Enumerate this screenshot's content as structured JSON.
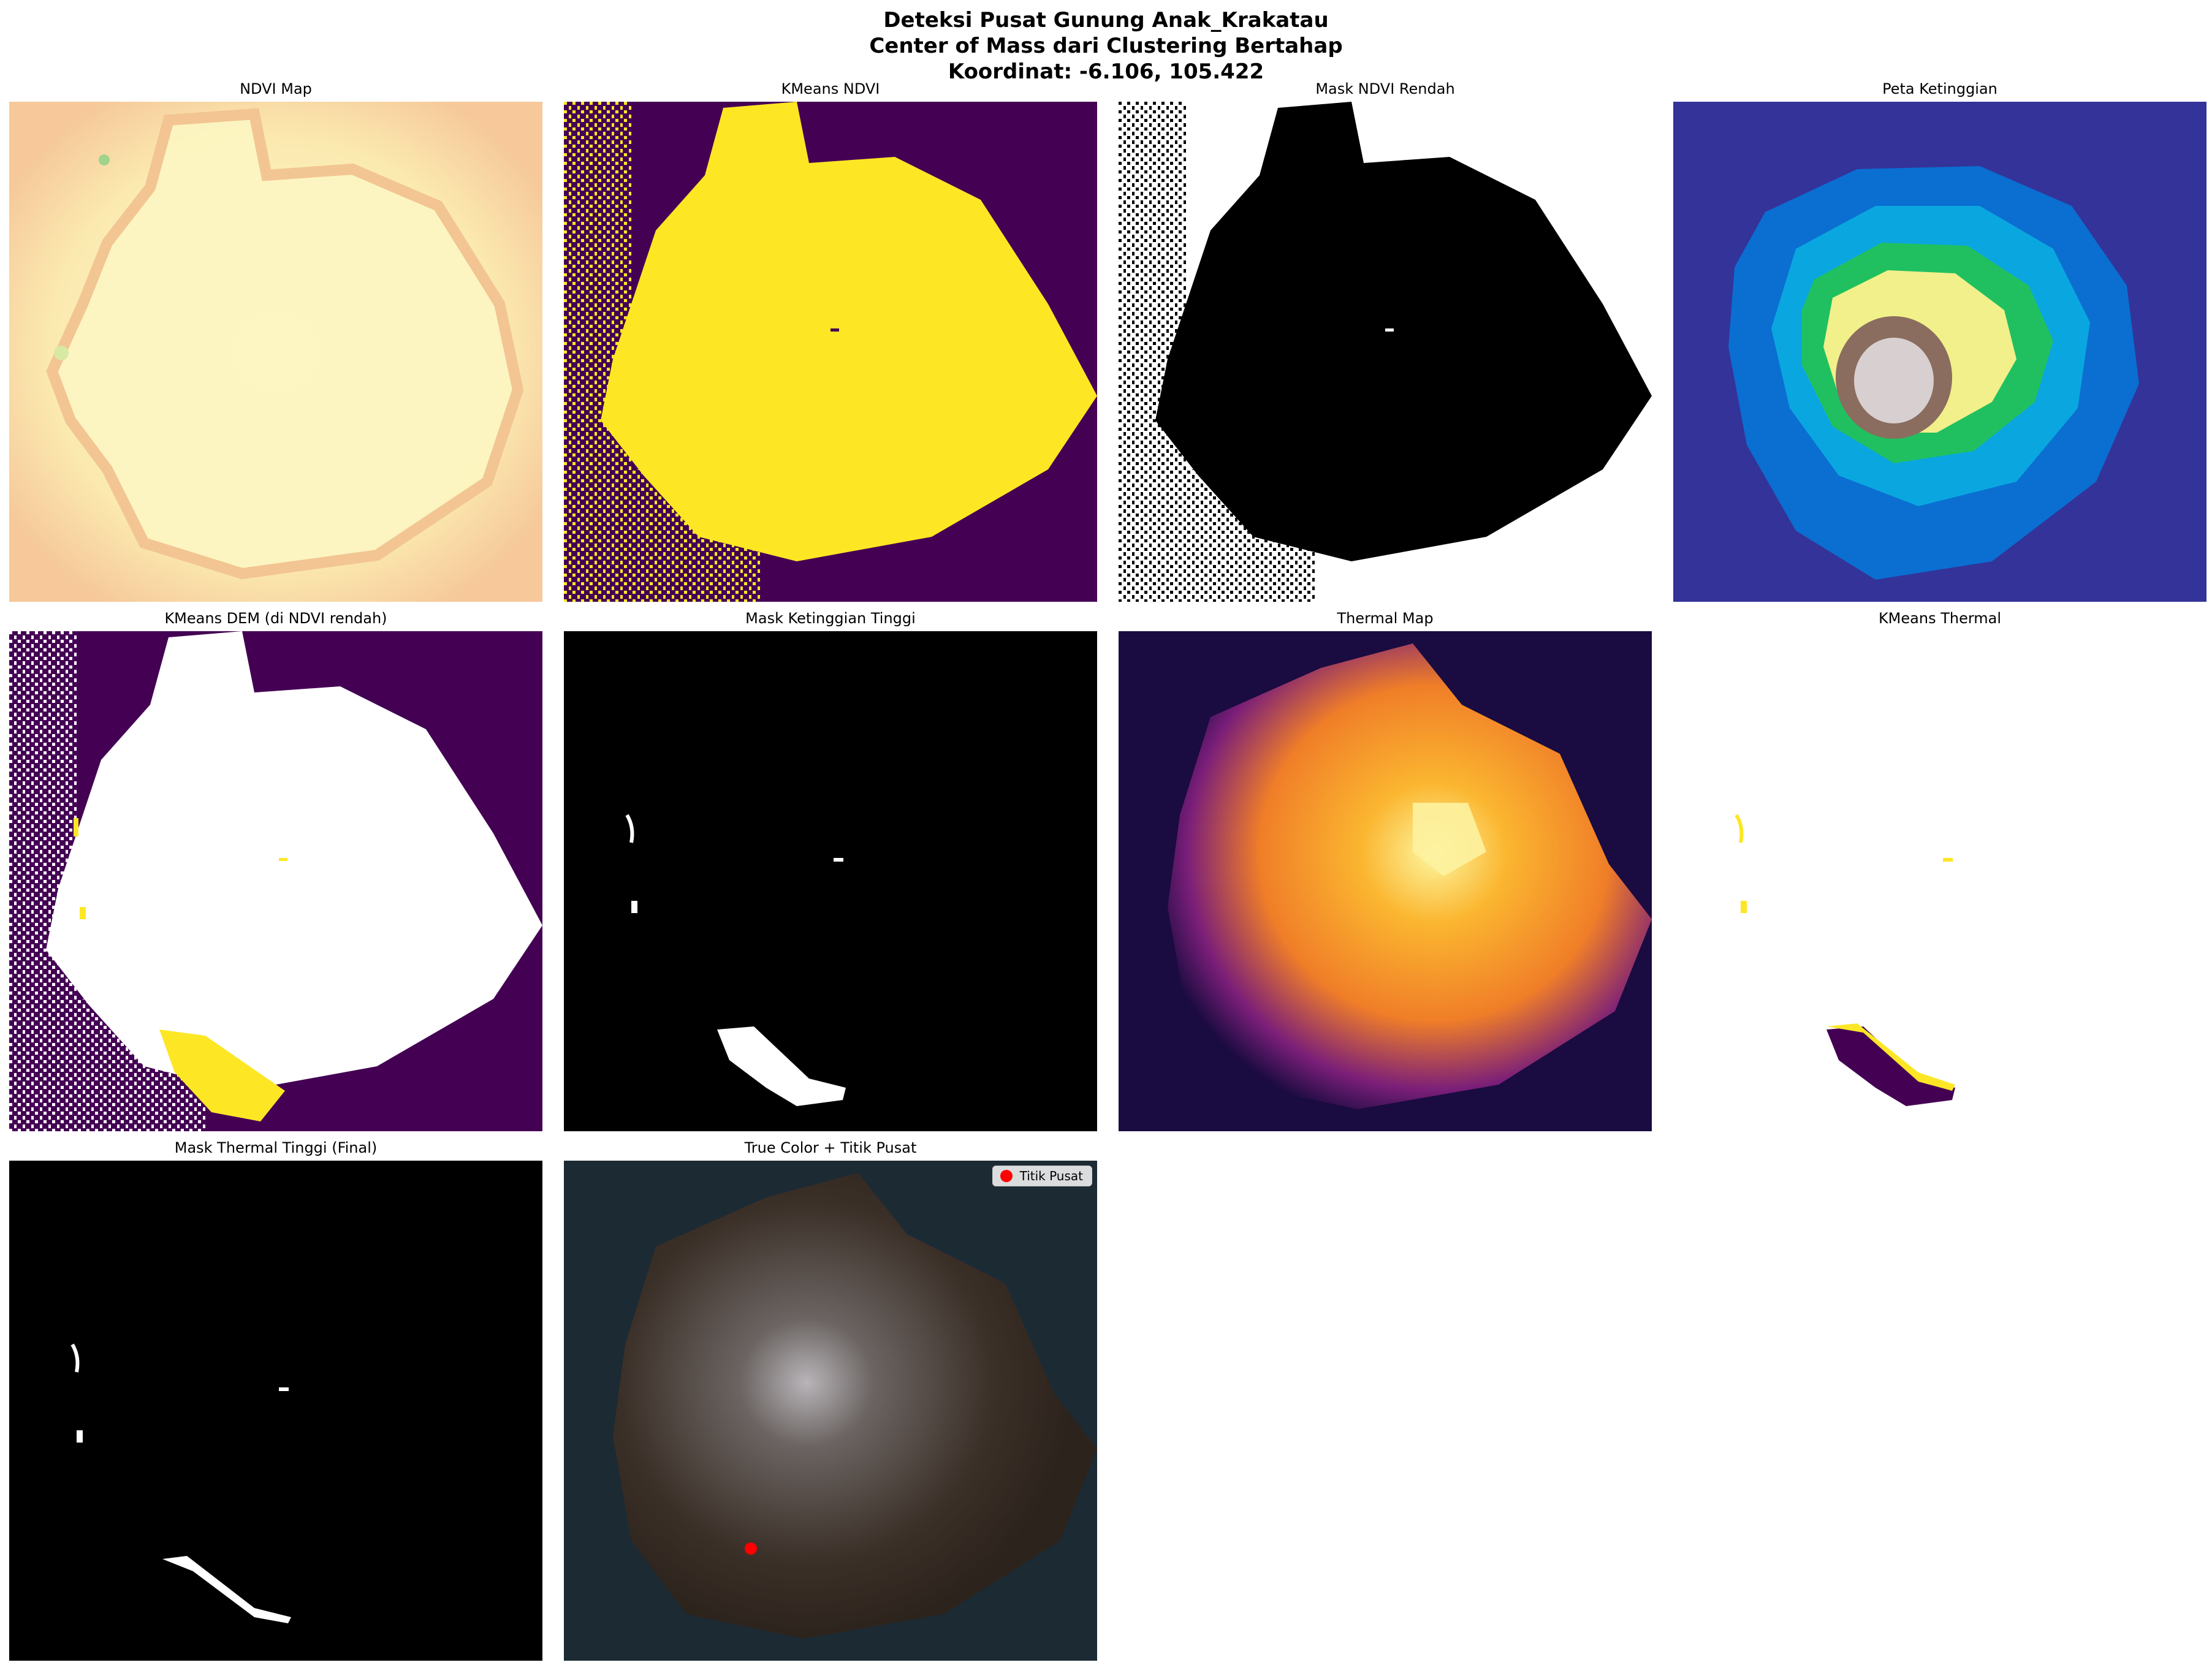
{
  "title": {
    "line1": "Deteksi Pusat Gunung Anak_Krakatau",
    "line2": "Center of Mass dari Clustering Bertahap",
    "line3": "Koordinat: -6.106, 105.422"
  },
  "panels": [
    {
      "id": "ndvi-map",
      "title": "NDVI Map"
    },
    {
      "id": "kmeans-ndvi",
      "title": "KMeans NDVI"
    },
    {
      "id": "mask-ndvi-rendah",
      "title": "Mask NDVI Rendah"
    },
    {
      "id": "peta-ketinggian",
      "title": "Peta Ketinggian"
    },
    {
      "id": "kmeans-dem",
      "title": "KMeans DEM (di NDVI rendah)"
    },
    {
      "id": "mask-ketinggian-tinggi",
      "title": "Mask Ketinggian Tinggi"
    },
    {
      "id": "thermal-map",
      "title": "Thermal Map"
    },
    {
      "id": "kmeans-thermal",
      "title": "KMeans Thermal"
    },
    {
      "id": "mask-thermal-final",
      "title": "Mask Thermal Tinggi (Final)"
    },
    {
      "id": "true-color",
      "title": "True Color + Titik Pusat"
    }
  ],
  "legend": {
    "label": "Titik Pusat",
    "color": "#ff0000"
  },
  "colors": {
    "viridis_dark": "#440154",
    "viridis_yellow": "#fde725",
    "ndvi_fill": "#fcf3b8",
    "ndvi_edge": "#f3b98a",
    "terrain_sea": "#333399",
    "ocean": "#1c2a33",
    "island": "#3b3028"
  }
}
